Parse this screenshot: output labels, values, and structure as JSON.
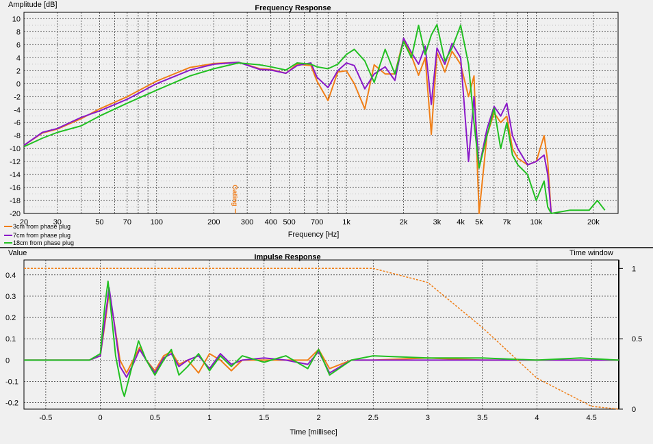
{
  "freq_chart": {
    "title": "Frequency Response",
    "ylabel": "Amplitude [dB]",
    "xlabel": "Frequency [Hz]",
    "gating_label": "Gating",
    "legend": [
      "3cm from phase plug",
      "7cm from phase plug",
      "18cm from phase plug"
    ]
  },
  "imp_chart": {
    "title": "Impulse Response",
    "ylabel": "Value",
    "y2label": "Time window",
    "xlabel": "Time [millisec]"
  },
  "colors": {
    "s1": "#f07f17",
    "s2": "#8a19c8",
    "s3": "#22c022"
  },
  "chart_data": [
    {
      "type": "line",
      "title": "Frequency Response",
      "xlabel": "Frequency [Hz]",
      "ylabel": "Amplitude [dB]",
      "xscale": "log",
      "xlim": [
        20,
        27000
      ],
      "ylim": [
        -20,
        11
      ],
      "grid": true,
      "legend_position": "bottom-left",
      "xticks": [
        20,
        30,
        50,
        70,
        100,
        200,
        300,
        400,
        500,
        700,
        1000,
        2000,
        3000,
        4000,
        5000,
        7000,
        10000,
        20000
      ],
      "xtick_labels": [
        "20",
        "30",
        "50",
        "70",
        "100",
        "200",
        "300",
        "400",
        "500",
        "700",
        "1k",
        "2k",
        "3k",
        "4k",
        "5k",
        "7k",
        "10k",
        "20k"
      ],
      "yticks": [
        10,
        8,
        6,
        4,
        2,
        0,
        -2,
        -4,
        -6,
        -8,
        -10,
        -12,
        -14,
        -16,
        -18,
        -20
      ],
      "annotations": [
        {
          "text": "Gating",
          "x": 260
        }
      ],
      "series": [
        {
          "name": "3cm from phase plug",
          "x": [
            20,
            25,
            30,
            40,
            50,
            70,
            100,
            150,
            200,
            270,
            350,
            400,
            480,
            550,
            650,
            700,
            800,
            900,
            1000,
            1100,
            1250,
            1400,
            1600,
            1800,
            2000,
            2200,
            2400,
            2600,
            2800,
            3000,
            3300,
            3600,
            4000,
            4400,
            4700,
            5000,
            5500,
            6000,
            6500,
            7000,
            7500,
            8000,
            9000,
            10000,
            11000,
            11500,
            12000
          ],
          "y": [
            -9.5,
            -7.6,
            -7.0,
            -5.4,
            -3.9,
            -2.0,
            0.4,
            2.5,
            3.1,
            3.3,
            2.3,
            2.2,
            1.6,
            3.0,
            2.8,
            0.4,
            -2.6,
            1.8,
            2.0,
            0.0,
            -3.9,
            2.9,
            1.5,
            1.5,
            6.9,
            4.3,
            1.3,
            4.0,
            -7.8,
            4.8,
            1.8,
            5.0,
            3.0,
            -2.0,
            1.2,
            -20.0,
            -8.0,
            -4.5,
            -6.0,
            -5.0,
            -10.0,
            -11.5,
            -12.5,
            -12.0,
            -8.0,
            -12.0,
            -20.0
          ]
        },
        {
          "name": "7cm from phase plug",
          "x": [
            20,
            25,
            30,
            40,
            50,
            70,
            100,
            150,
            200,
            270,
            350,
            400,
            480,
            550,
            650,
            700,
            800,
            900,
            1000,
            1100,
            1250,
            1400,
            1600,
            1800,
            2000,
            2200,
            2400,
            2600,
            2800,
            3000,
            3300,
            3600,
            4000,
            4400,
            4700,
            5000,
            5500,
            6000,
            6500,
            7000,
            7500,
            8000,
            9000,
            10000,
            11000,
            11500,
            12000
          ],
          "y": [
            -9.5,
            -7.5,
            -6.9,
            -5.2,
            -4.2,
            -2.4,
            0.0,
            2.1,
            3.0,
            3.3,
            2.2,
            2.1,
            1.6,
            2.8,
            3.2,
            1.0,
            -0.6,
            2.0,
            3.2,
            2.8,
            -0.8,
            1.5,
            2.6,
            0.5,
            7.0,
            4.8,
            3.0,
            5.8,
            -3.2,
            5.5,
            3.0,
            6.2,
            4.0,
            -12.0,
            -2.0,
            -13.0,
            -7.0,
            -3.5,
            -5.0,
            -3.0,
            -8.0,
            -10.0,
            -12.5,
            -12.0,
            -11.0,
            -14.0,
            -20.0
          ]
        },
        {
          "name": "18cm from phase plug",
          "x": [
            20,
            25,
            30,
            40,
            50,
            70,
            100,
            150,
            200,
            270,
            350,
            400,
            480,
            550,
            650,
            700,
            800,
            900,
            1000,
            1100,
            1250,
            1400,
            1600,
            1800,
            2000,
            2200,
            2400,
            2600,
            2800,
            3000,
            3300,
            3600,
            4000,
            4400,
            4700,
            5000,
            5500,
            6000,
            6500,
            7000,
            7500,
            8000,
            9000,
            10000,
            11000,
            11500,
            12000,
            15000,
            19000,
            21000,
            23000
          ],
          "y": [
            -9.7,
            -8.4,
            -7.5,
            -6.5,
            -5.0,
            -3.0,
            -1.0,
            1.2,
            2.3,
            3.2,
            2.9,
            2.6,
            2.1,
            3.2,
            3.0,
            2.6,
            2.3,
            3.0,
            4.5,
            5.3,
            3.5,
            0.2,
            5.3,
            1.5,
            6.5,
            4.0,
            9.0,
            4.5,
            7.5,
            9.1,
            3.5,
            5.5,
            9.0,
            3.0,
            -6.0,
            -13.0,
            -8.0,
            -3.8,
            -10.0,
            -6.0,
            -11.0,
            -12.5,
            -14.0,
            -18.0,
            -15.0,
            -19.0,
            -20.0,
            -19.5,
            -19.5,
            -18.0,
            -19.5
          ]
        }
      ]
    },
    {
      "type": "line",
      "title": "Impulse Response",
      "xlabel": "Time [millisec]",
      "ylabel": "Value",
      "y2label": "Time window",
      "xlim": [
        -0.7,
        4.75
      ],
      "ylim": [
        -0.23,
        0.47
      ],
      "y2lim": [
        0,
        1.06
      ],
      "grid": true,
      "xticks": [
        -0.5,
        0,
        0.5,
        1,
        1.5,
        2,
        2.5,
        3,
        3.5,
        4,
        4.5
      ],
      "yticks": [
        0.4,
        0.3,
        0.2,
        0.1,
        0,
        -0.1,
        -0.2
      ],
      "y2ticks": [
        1,
        0.5,
        0
      ],
      "series": [
        {
          "name": "3cm from phase plug",
          "x": [
            -0.7,
            -0.1,
            0.0,
            0.05,
            0.08,
            0.12,
            0.18,
            0.24,
            0.3,
            0.36,
            0.42,
            0.5,
            0.58,
            0.65,
            0.72,
            0.8,
            0.9,
            1.0,
            1.1,
            1.2,
            1.3,
            1.5,
            1.7,
            1.9,
            2.0,
            2.1,
            2.3,
            2.5,
            3.0,
            3.5,
            4.0,
            4.75
          ],
          "y": [
            0.0,
            0.0,
            0.02,
            0.2,
            0.32,
            0.2,
            0.0,
            -0.06,
            0.0,
            0.06,
            0.0,
            -0.05,
            0.02,
            0.04,
            -0.02,
            0.0,
            -0.06,
            0.03,
            0.0,
            -0.05,
            0.0,
            0.0,
            0.0,
            0.0,
            0.05,
            -0.04,
            0.0,
            0.0,
            0.01,
            0.0,
            0.0,
            0.0
          ]
        },
        {
          "name": "7cm from phase plug",
          "x": [
            -0.7,
            -0.1,
            0.0,
            0.05,
            0.08,
            0.12,
            0.18,
            0.24,
            0.3,
            0.36,
            0.42,
            0.5,
            0.58,
            0.65,
            0.72,
            0.8,
            0.9,
            1.0,
            1.1,
            1.2,
            1.3,
            1.5,
            1.7,
            1.9,
            2.0,
            2.1,
            2.3,
            2.5,
            3.0,
            3.5,
            4.0,
            4.75
          ],
          "y": [
            0.0,
            0.0,
            0.02,
            0.22,
            0.34,
            0.2,
            -0.03,
            -0.08,
            -0.02,
            0.05,
            0.0,
            -0.06,
            0.01,
            0.03,
            -0.03,
            0.0,
            0.02,
            -0.04,
            0.03,
            -0.02,
            0.0,
            0.01,
            0.0,
            -0.02,
            0.04,
            -0.06,
            0.0,
            0.0,
            0.0,
            0.0,
            0.0,
            0.0
          ]
        },
        {
          "name": "18cm from phase plug",
          "x": [
            -0.7,
            -0.1,
            0.0,
            0.04,
            0.07,
            0.1,
            0.14,
            0.2,
            0.22,
            0.28,
            0.35,
            0.42,
            0.5,
            0.58,
            0.65,
            0.72,
            0.8,
            0.9,
            1.0,
            1.1,
            1.2,
            1.3,
            1.5,
            1.7,
            1.9,
            2.0,
            2.1,
            2.3,
            2.5,
            3.0,
            3.5,
            4.0,
            4.4,
            4.75
          ],
          "y": [
            0.0,
            0.0,
            0.03,
            0.25,
            0.37,
            0.22,
            0.02,
            -0.14,
            -0.17,
            -0.05,
            0.09,
            0.0,
            -0.07,
            0.0,
            0.05,
            -0.07,
            -0.03,
            0.03,
            -0.05,
            0.02,
            -0.03,
            0.02,
            -0.01,
            0.02,
            -0.04,
            0.05,
            -0.07,
            0.0,
            0.02,
            0.01,
            0.01,
            0.0,
            0.01,
            0.0
          ]
        },
        {
          "name": "Time window",
          "axis": "y2",
          "x": [
            -0.7,
            2.5,
            3.0,
            3.5,
            4.0,
            4.5,
            4.75
          ],
          "y": [
            1.0,
            1.0,
            0.9,
            0.58,
            0.22,
            0.02,
            0.0
          ]
        }
      ]
    }
  ]
}
